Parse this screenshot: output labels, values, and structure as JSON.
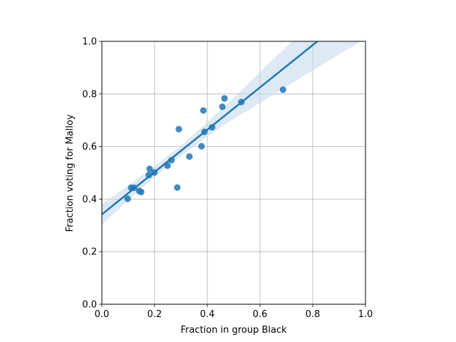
{
  "chart_data": {
    "type": "scatter",
    "title": "",
    "xlabel": "Fraction in group Black",
    "ylabel": "Fraction voting for Malloy",
    "xlim": [
      0.0,
      1.0
    ],
    "ylim": [
      0.0,
      1.0
    ],
    "xticks": [
      0.0,
      0.2,
      0.4,
      0.6,
      0.8,
      1.0
    ],
    "yticks": [
      0.0,
      0.2,
      0.4,
      0.6,
      0.8,
      1.0
    ],
    "xtick_labels": [
      "0.0",
      "0.2",
      "0.4",
      "0.6",
      "0.8",
      "1.0"
    ],
    "ytick_labels": [
      "0.0",
      "0.2",
      "0.4",
      "0.6",
      "0.8",
      "1.0"
    ],
    "grid": true,
    "legend": "none",
    "colors": {
      "points": "#1f77b4",
      "regression_line": "#1f77b4",
      "confidence_band": "#c6dbef",
      "grid": "#b0b0b0"
    },
    "points": [
      {
        "x": 0.098,
        "y": 0.401
      },
      {
        "x": 0.111,
        "y": 0.443
      },
      {
        "x": 0.122,
        "y": 0.443
      },
      {
        "x": 0.142,
        "y": 0.431
      },
      {
        "x": 0.149,
        "y": 0.427
      },
      {
        "x": 0.178,
        "y": 0.491
      },
      {
        "x": 0.181,
        "y": 0.515
      },
      {
        "x": 0.199,
        "y": 0.501
      },
      {
        "x": 0.249,
        "y": 0.527
      },
      {
        "x": 0.264,
        "y": 0.548
      },
      {
        "x": 0.286,
        "y": 0.444
      },
      {
        "x": 0.292,
        "y": 0.666
      },
      {
        "x": 0.332,
        "y": 0.562
      },
      {
        "x": 0.378,
        "y": 0.601
      },
      {
        "x": 0.385,
        "y": 0.737
      },
      {
        "x": 0.389,
        "y": 0.656
      },
      {
        "x": 0.418,
        "y": 0.673
      },
      {
        "x": 0.457,
        "y": 0.751
      },
      {
        "x": 0.465,
        "y": 0.783
      },
      {
        "x": 0.529,
        "y": 0.769
      },
      {
        "x": 0.687,
        "y": 0.816
      }
    ],
    "regression": {
      "intercept": 0.342,
      "slope": 0.805
    },
    "confidence_band": [
      {
        "x": 0.0,
        "lo": 0.303,
        "hi": 0.381
      },
      {
        "x": 0.1,
        "lo": 0.395,
        "hi": 0.452
      },
      {
        "x": 0.2,
        "lo": 0.484,
        "hi": 0.525
      },
      {
        "x": 0.3,
        "lo": 0.565,
        "hi": 0.604
      },
      {
        "x": 0.4,
        "lo": 0.638,
        "hi": 0.692
      },
      {
        "x": 0.5,
        "lo": 0.705,
        "hi": 0.785
      },
      {
        "x": 0.6,
        "lo": 0.766,
        "hi": 0.884
      },
      {
        "x": 0.7,
        "lo": 0.828,
        "hi": 0.98
      },
      {
        "x": 0.8,
        "lo": 0.89,
        "hi": 1.08
      },
      {
        "x": 0.9,
        "lo": 0.95,
        "hi": 1.18
      },
      {
        "x": 1.0,
        "lo": 1.01,
        "hi": 1.28
      }
    ]
  }
}
